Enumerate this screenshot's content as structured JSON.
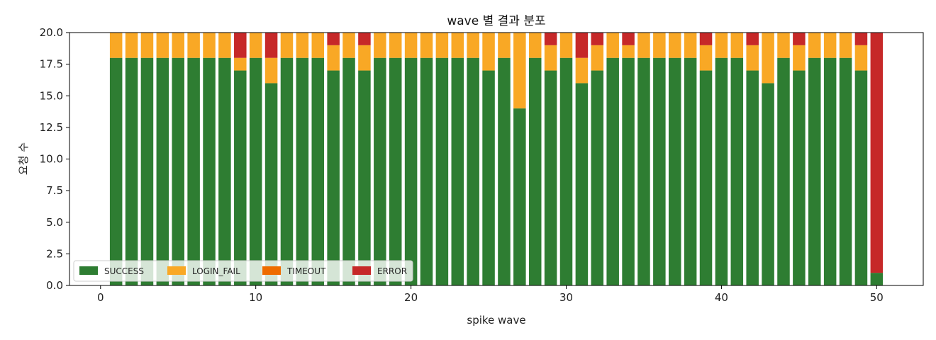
{
  "chart_data": {
    "type": "bar",
    "stacked": true,
    "title": "wave 별 결과 분포",
    "xlabel": "spike wave",
    "ylabel": "요청 수",
    "xlim": [
      -2,
      53
    ],
    "ylim": [
      0,
      20
    ],
    "x_ticks": [
      0,
      10,
      20,
      30,
      40,
      50
    ],
    "y_ticks": [
      0.0,
      2.5,
      5.0,
      7.5,
      10.0,
      12.5,
      15.0,
      17.5,
      20.0
    ],
    "x_tick_labels": [
      "0",
      "10",
      "20",
      "30",
      "40",
      "50"
    ],
    "y_tick_labels": [
      "0.0",
      "2.5",
      "5.0",
      "7.5",
      "10.0",
      "12.5",
      "15.0",
      "17.5",
      "20.0"
    ],
    "grid": false,
    "legend_position": "lower-left",
    "x": [
      1,
      2,
      3,
      4,
      5,
      6,
      7,
      8,
      9,
      10,
      11,
      12,
      13,
      14,
      15,
      16,
      17,
      18,
      19,
      20,
      21,
      22,
      23,
      24,
      25,
      26,
      27,
      28,
      29,
      30,
      31,
      32,
      33,
      34,
      35,
      36,
      37,
      38,
      39,
      40,
      41,
      42,
      43,
      44,
      45,
      46,
      47,
      48,
      49,
      50
    ],
    "series": [
      {
        "name": "SUCCESS",
        "color": "#2e7d32",
        "values": [
          18,
          18,
          18,
          18,
          18,
          18,
          18,
          18,
          17,
          18,
          16,
          18,
          18,
          18,
          17,
          18,
          17,
          18,
          18,
          18,
          18,
          18,
          18,
          18,
          17,
          18,
          14,
          18,
          17,
          18,
          16,
          17,
          18,
          18,
          18,
          18,
          18,
          18,
          17,
          18,
          18,
          17,
          16,
          18,
          17,
          18,
          18,
          18,
          17,
          1
        ]
      },
      {
        "name": "LOGIN_FAIL",
        "color": "#f9a825",
        "values": [
          2,
          2,
          2,
          2,
          2,
          2,
          2,
          2,
          1,
          2,
          2,
          2,
          2,
          2,
          2,
          2,
          2,
          2,
          2,
          2,
          2,
          2,
          2,
          2,
          3,
          2,
          6,
          2,
          2,
          2,
          2,
          2,
          2,
          1,
          2,
          2,
          2,
          2,
          2,
          2,
          2,
          2,
          4,
          2,
          2,
          2,
          2,
          2,
          2,
          0
        ]
      },
      {
        "name": "TIMEOUT",
        "color": "#ef6c00",
        "values": [
          0,
          0,
          0,
          0,
          0,
          0,
          0,
          0,
          0,
          0,
          0,
          0,
          0,
          0,
          0,
          0,
          0,
          0,
          0,
          0,
          0,
          0,
          0,
          0,
          0,
          0,
          0,
          0,
          0,
          0,
          0,
          0,
          0,
          0,
          0,
          0,
          0,
          0,
          0,
          0,
          0,
          0,
          0,
          0,
          0,
          0,
          0,
          0,
          0,
          0
        ]
      },
      {
        "name": "ERROR",
        "color": "#c62828",
        "values": [
          0,
          0,
          0,
          0,
          0,
          0,
          0,
          0,
          2,
          0,
          2,
          0,
          0,
          0,
          1,
          0,
          1,
          0,
          0,
          0,
          0,
          0,
          0,
          0,
          0,
          0,
          0,
          0,
          1,
          0,
          2,
          1,
          0,
          1,
          0,
          0,
          0,
          0,
          1,
          0,
          0,
          1,
          0,
          0,
          1,
          0,
          0,
          0,
          1,
          19
        ]
      }
    ]
  }
}
